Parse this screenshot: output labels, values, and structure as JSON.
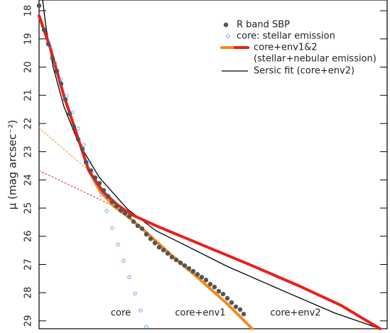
{
  "chart_data": {
    "type": "line",
    "ylabel": "μ (mag arcsec⁻²)",
    "xlim": [
      0,
      490
    ],
    "ylim": [
      29.28,
      17.62
    ],
    "yticks": [
      18,
      19,
      20,
      21,
      22,
      23,
      24,
      25,
      26,
      27,
      28,
      29
    ],
    "legend": [
      "R band SBP",
      "core: stellar emission",
      "core+env1&2",
      "(stellar+nebular emission)",
      "Sersic fit (core+env2)"
    ],
    "annotations": [
      "core",
      "core+env1",
      "core+env2"
    ],
    "series": [
      {
        "marker": "dot",
        "color": "#555555",
        "x": [
          0,
          7,
          13,
          19,
          25,
          31,
          37,
          43,
          49,
          55,
          61,
          66,
          73,
          79,
          85,
          91,
          97,
          103,
          109,
          115,
          121,
          127,
          133,
          139,
          145,
          151,
          157,
          163,
          169,
          175,
          181,
          187,
          193,
          199,
          205,
          211,
          217,
          223,
          229,
          235,
          241,
          247,
          253,
          259,
          265,
          271,
          277,
          283,
          288
        ],
        "values": [
          17.82,
          18.68,
          19.18,
          19.69,
          20.14,
          20.59,
          21.15,
          21.65,
          22.11,
          22.56,
          22.91,
          23.37,
          23.67,
          23.92,
          24.12,
          24.37,
          24.58,
          24.78,
          24.93,
          25.08,
          25.18,
          25.3,
          25.48,
          25.63,
          25.73,
          25.93,
          26.09,
          26.24,
          26.39,
          26.49,
          26.61,
          26.74,
          26.84,
          26.94,
          27.04,
          27.14,
          27.24,
          27.35,
          27.45,
          27.55,
          27.7,
          27.8,
          27.95,
          28.05,
          28.2,
          28.35,
          28.5,
          28.6,
          28.76
        ]
      },
      {
        "marker": "circle",
        "color": "#5aa0e6",
        "x": [
          7,
          15,
          23,
          31,
          39,
          47,
          55,
          63,
          71,
          79,
          87,
          95,
          103,
          111,
          119,
          127,
          135,
          143,
          151
        ],
        "values": [
          18.68,
          19.26,
          19.86,
          20.44,
          21.02,
          21.6,
          22.18,
          22.76,
          23.37,
          23.94,
          24.52,
          25.1,
          25.71,
          26.29,
          26.87,
          27.45,
          28.03,
          28.63,
          29.21
        ]
      },
      {
        "marker": "line",
        "dash": true,
        "width": 1,
        "color": "#f08a1c",
        "x": [
          0,
          70
        ],
        "values": [
          22.16,
          23.67
        ]
      },
      {
        "marker": "line",
        "dash": true,
        "width": 1,
        "color": "#e8201c",
        "x": [
          0,
          130
        ],
        "values": [
          23.67,
          25.23
        ]
      },
      {
        "marker": "line",
        "width": 4,
        "color": "#f08a1c",
        "x": [
          0,
          15,
          35,
          55,
          70,
          85,
          105,
          125,
          145,
          185,
          225,
          265,
          300
        ],
        "values": [
          18.18,
          19.26,
          21.02,
          22.53,
          23.67,
          24.37,
          24.93,
          25.3,
          25.73,
          26.64,
          27.5,
          28.4,
          29.28
        ]
      },
      {
        "marker": "line",
        "width": 4,
        "color": "#e8201c",
        "x": [
          0,
          15,
          35,
          55,
          70,
          90,
          110,
          130,
          165,
          225,
          295,
          365,
          425,
          480
        ],
        "values": [
          18.18,
          19.26,
          21.02,
          22.53,
          23.67,
          24.42,
          24.88,
          25.23,
          25.63,
          26.26,
          26.99,
          27.75,
          28.45,
          29.28
        ]
      },
      {
        "marker": "line",
        "width": 1.3,
        "color": "#000000",
        "x": [
          5,
          10,
          20,
          35,
          55,
          85,
          125,
          165,
          205,
          265,
          345,
          415,
          480
        ],
        "values": [
          17.62,
          18.63,
          20.02,
          21.4,
          22.66,
          23.92,
          25.05,
          25.81,
          26.31,
          27.07,
          27.95,
          28.71,
          29.28
        ]
      }
    ]
  }
}
